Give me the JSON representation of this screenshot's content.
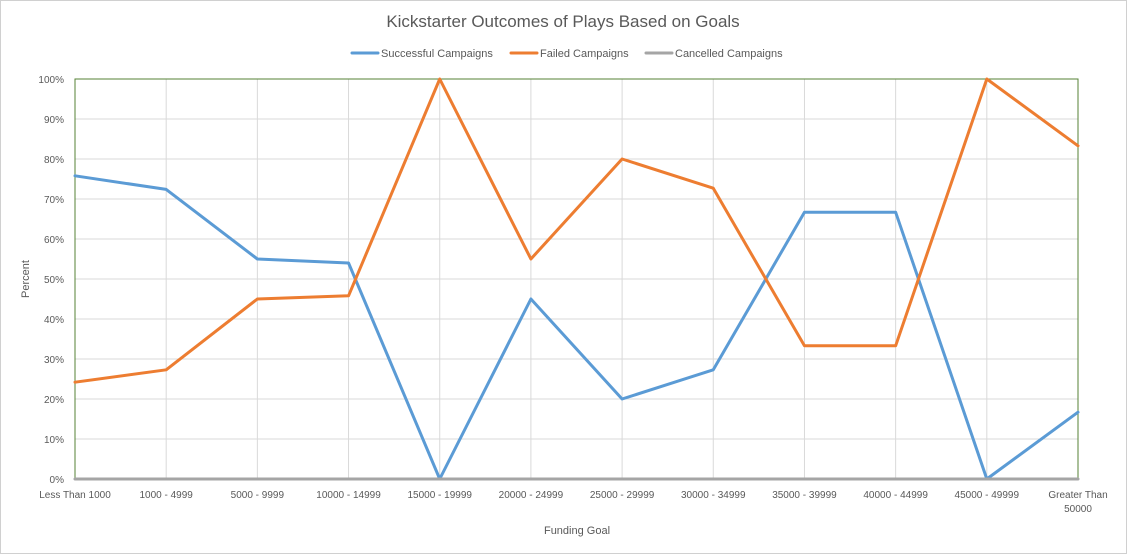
{
  "chart_data": {
    "type": "line",
    "title": "Kickstarter Outcomes of Plays Based on Goals",
    "xlabel": "Funding Goal",
    "ylabel": "Percent",
    "categories": [
      [
        "Less Than 1000"
      ],
      [
        "1000 - 4999"
      ],
      [
        "5000 - 9999"
      ],
      [
        "10000 - 14999"
      ],
      [
        "15000 - 19999"
      ],
      [
        "20000 - 24999"
      ],
      [
        "25000 - 29999"
      ],
      [
        "30000 - 34999"
      ],
      [
        "35000 - 39999"
      ],
      [
        "40000 - 44999"
      ],
      [
        "45000 - 49999"
      ],
      [
        "Greater Than",
        "50000"
      ]
    ],
    "ylim": [
      0,
      100
    ],
    "ytick_labels": [
      "0%",
      "10%",
      "20%",
      "30%",
      "40%",
      "50%",
      "60%",
      "70%",
      "80%",
      "90%",
      "100%"
    ],
    "grid": true,
    "legend_position": "top",
    "series": [
      {
        "name": "Successful Campaigns",
        "color": "#5b9bd5",
        "values": [
          75.8,
          72.4,
          55.0,
          54.0,
          0.0,
          45.0,
          20.0,
          27.3,
          66.7,
          66.7,
          0.0,
          16.7
        ]
      },
      {
        "name": "Failed Campaigns",
        "color": "#ed7d31",
        "values": [
          24.2,
          27.3,
          45.0,
          45.8,
          100.0,
          55.0,
          80.0,
          72.7,
          33.3,
          33.3,
          100.0,
          83.3
        ]
      },
      {
        "name": "Cancelled Campaigns",
        "color": "#a5a5a5",
        "values": [
          0,
          0,
          0,
          0,
          0,
          0,
          0,
          0,
          0,
          0,
          0,
          0
        ]
      }
    ]
  }
}
